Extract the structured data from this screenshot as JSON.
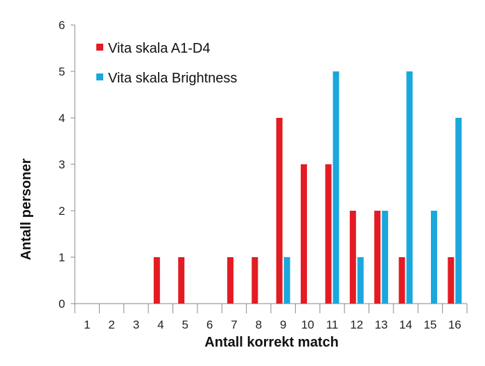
{
  "chart_data": {
    "type": "bar",
    "xlabel": "Antall korrekt match",
    "ylabel": "Antall personer",
    "ylim": [
      0,
      6
    ],
    "yticks": [
      0,
      1,
      2,
      3,
      4,
      5,
      6
    ],
    "categories": [
      "1",
      "2",
      "3",
      "4",
      "5",
      "6",
      "7",
      "8",
      "9",
      "10",
      "11",
      "12",
      "13",
      "14",
      "15",
      "16"
    ],
    "legend_position": "top-left",
    "grid": false,
    "series": [
      {
        "name": "Vita skala A1-D4",
        "color": "#e31b23",
        "values": [
          0,
          0,
          0,
          1,
          1,
          0,
          1,
          1,
          4,
          3,
          3,
          2,
          2,
          1,
          0,
          1
        ]
      },
      {
        "name": "Vita skala Brightness",
        "color": "#1aa7dc",
        "values": [
          0,
          0,
          0,
          0,
          0,
          0,
          0,
          0,
          1,
          0,
          5,
          1,
          2,
          5,
          2,
          4
        ]
      }
    ]
  }
}
